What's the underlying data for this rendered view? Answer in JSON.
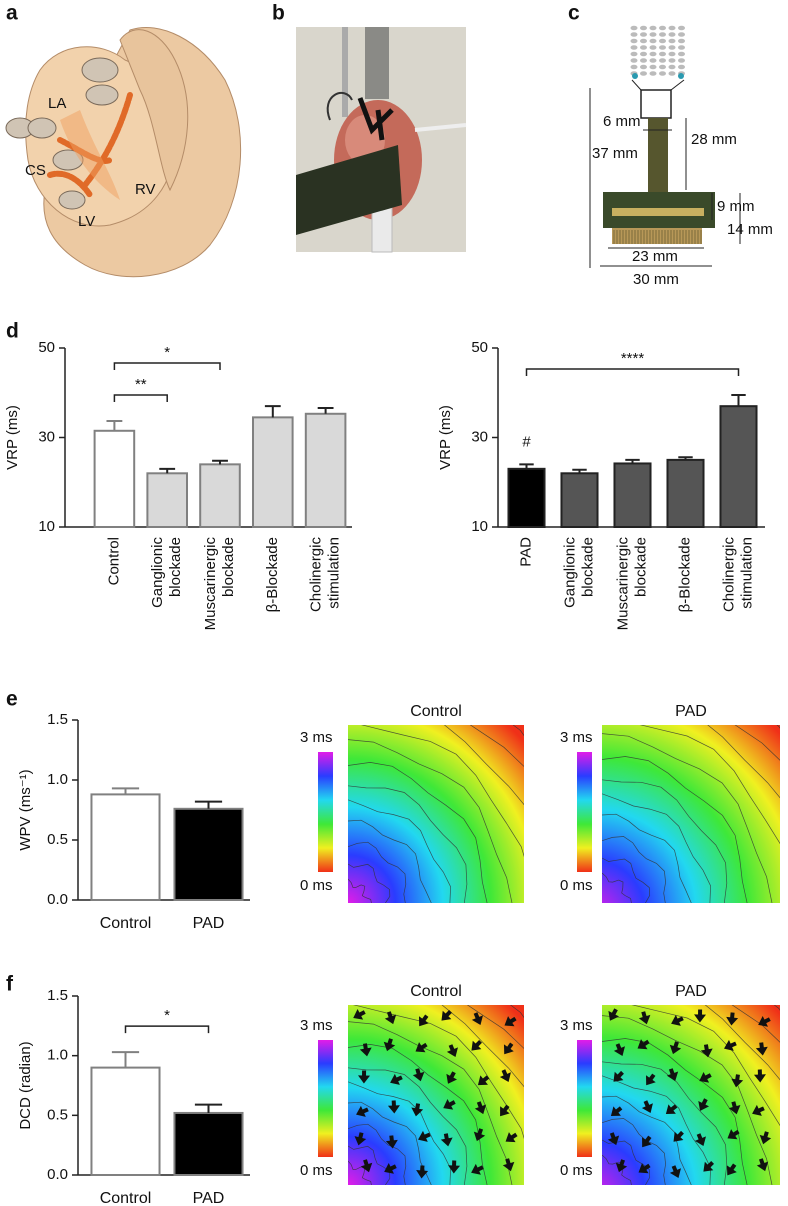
{
  "panel_labels": [
    "a",
    "b",
    "c",
    "d",
    "e",
    "f"
  ],
  "heart_labels": [
    "LA",
    "CS",
    "RV",
    "LV"
  ],
  "device_labels": [
    "6 mm",
    "28 mm",
    "37 mm",
    "9 mm",
    "14 mm",
    "23 mm",
    "30 mm"
  ],
  "maps": {
    "colors": [
      "#e21ce8",
      "#2a3cff",
      "#22d8f0",
      "#3ee838",
      "#f0f020",
      "#f03018"
    ],
    "scale_labels": [
      "3 ms",
      "0 ms"
    ],
    "items": [
      {
        "title": "Control"
      },
      {
        "title": "PAD"
      },
      {
        "title": "Control"
      },
      {
        "title": "PAD"
      }
    ]
  },
  "chart_data": [
    {
      "type": "bar",
      "ylabel": "VRP (ms)",
      "categories": [
        [
          "Control"
        ],
        [
          "Ganglionic",
          "blockade"
        ],
        [
          "Muscarinergic",
          "blockade"
        ],
        [
          "β-Blockade"
        ],
        [
          "Cholinergic",
          "stimulation"
        ]
      ],
      "values": [
        31.5,
        22,
        24,
        34.5,
        35.3
      ],
      "errors": [
        2.2,
        1,
        0.8,
        2.5,
        1.3
      ],
      "colors": [
        "#ffffff",
        "#d9d9d9",
        "#d9d9d9",
        "#d9d9d9",
        "#d9d9d9"
      ],
      "edgecolor": "#808080",
      "ylim": [
        10,
        50
      ],
      "yticks": [
        10,
        30,
        50
      ],
      "brackets": [
        {
          "label": "**",
          "from": "Control",
          "to": "Ganglionic"
        },
        {
          "label": "*",
          "from": "Control",
          "to": "Muscarinergic"
        }
      ]
    },
    {
      "type": "bar",
      "ylabel": "VRP (ms)",
      "categories": [
        [
          "PAD"
        ],
        [
          "Ganglionic",
          "blockade"
        ],
        [
          "Muscarinergic",
          "blockade"
        ],
        [
          "β-Blockade"
        ],
        [
          "Cholinergic",
          "stimulation"
        ]
      ],
      "values": [
        23,
        22,
        24.2,
        25,
        37
      ],
      "errors": [
        1,
        0.8,
        0.8,
        0.6,
        2.5
      ],
      "colors": [
        "#000000",
        "#555555",
        "#555555",
        "#555555",
        "#555555"
      ],
      "edgecolor": "#222222",
      "ylim": [
        10,
        50
      ],
      "yticks": [
        10,
        30,
        50
      ],
      "brackets": [
        {
          "label": "****",
          "from": "PAD",
          "to": "Cholinergic"
        }
      ],
      "annotations": [
        {
          "label": "#",
          "at": "PAD"
        }
      ]
    },
    {
      "type": "bar",
      "ylabel": "WPV (ms⁻¹)",
      "categories": [
        "Control",
        "PAD"
      ],
      "values": [
        0.88,
        0.76
      ],
      "errors": [
        0.05,
        0.06
      ],
      "colors": [
        "#ffffff",
        "#000000"
      ],
      "edgecolor": "#808080",
      "ylim": [
        0,
        1.5
      ],
      "yticks": [
        {
          "value": 0,
          "label": "0.0"
        },
        0.5,
        {
          "value": 1,
          "label": "1.0"
        },
        1.5
      ]
    },
    {
      "type": "bar",
      "ylabel": "DCD (radian)",
      "categories": [
        "Control",
        "PAD"
      ],
      "values": [
        0.9,
        0.52
      ],
      "errors": [
        0.13,
        0.07
      ],
      "colors": [
        "#ffffff",
        "#000000"
      ],
      "edgecolor": "#808080",
      "ylim": [
        0,
        1.5
      ],
      "yticks": [
        {
          "value": 0,
          "label": "0.0"
        },
        0.5,
        {
          "value": 1,
          "label": "1.0"
        },
        1.5
      ],
      "brackets": [
        {
          "label": "*",
          "from": "Control",
          "to": "PAD"
        }
      ]
    }
  ]
}
